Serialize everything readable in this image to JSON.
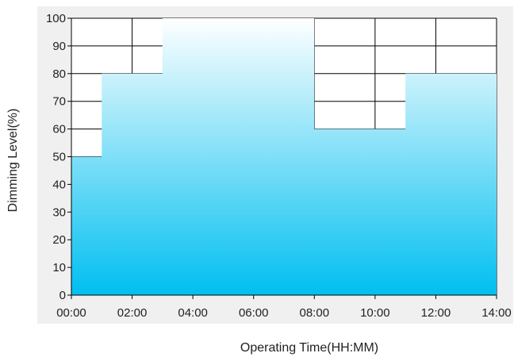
{
  "chart_data": {
    "type": "area",
    "title": "",
    "xlabel": "Operating Time(HH:MM)",
    "ylabel": "Dimming Level(%)",
    "xlim": [
      "00:00",
      "14:00"
    ],
    "ylim": [
      0,
      100
    ],
    "x_ticks": [
      "00:00",
      "02:00",
      "04:00",
      "06:00",
      "08:00",
      "10:00",
      "12:00",
      "14:00"
    ],
    "y_ticks": [
      0,
      10,
      20,
      30,
      40,
      50,
      60,
      70,
      80,
      90,
      100
    ],
    "grid": true,
    "step": "post",
    "x": [
      "00:00",
      "01:00",
      "03:00",
      "08:00",
      "11:00",
      "14:00"
    ],
    "values": [
      50,
      80,
      100,
      60,
      80,
      80
    ],
    "fill_colors": {
      "top": "#ffffff",
      "bottom": "#00bff0"
    }
  }
}
